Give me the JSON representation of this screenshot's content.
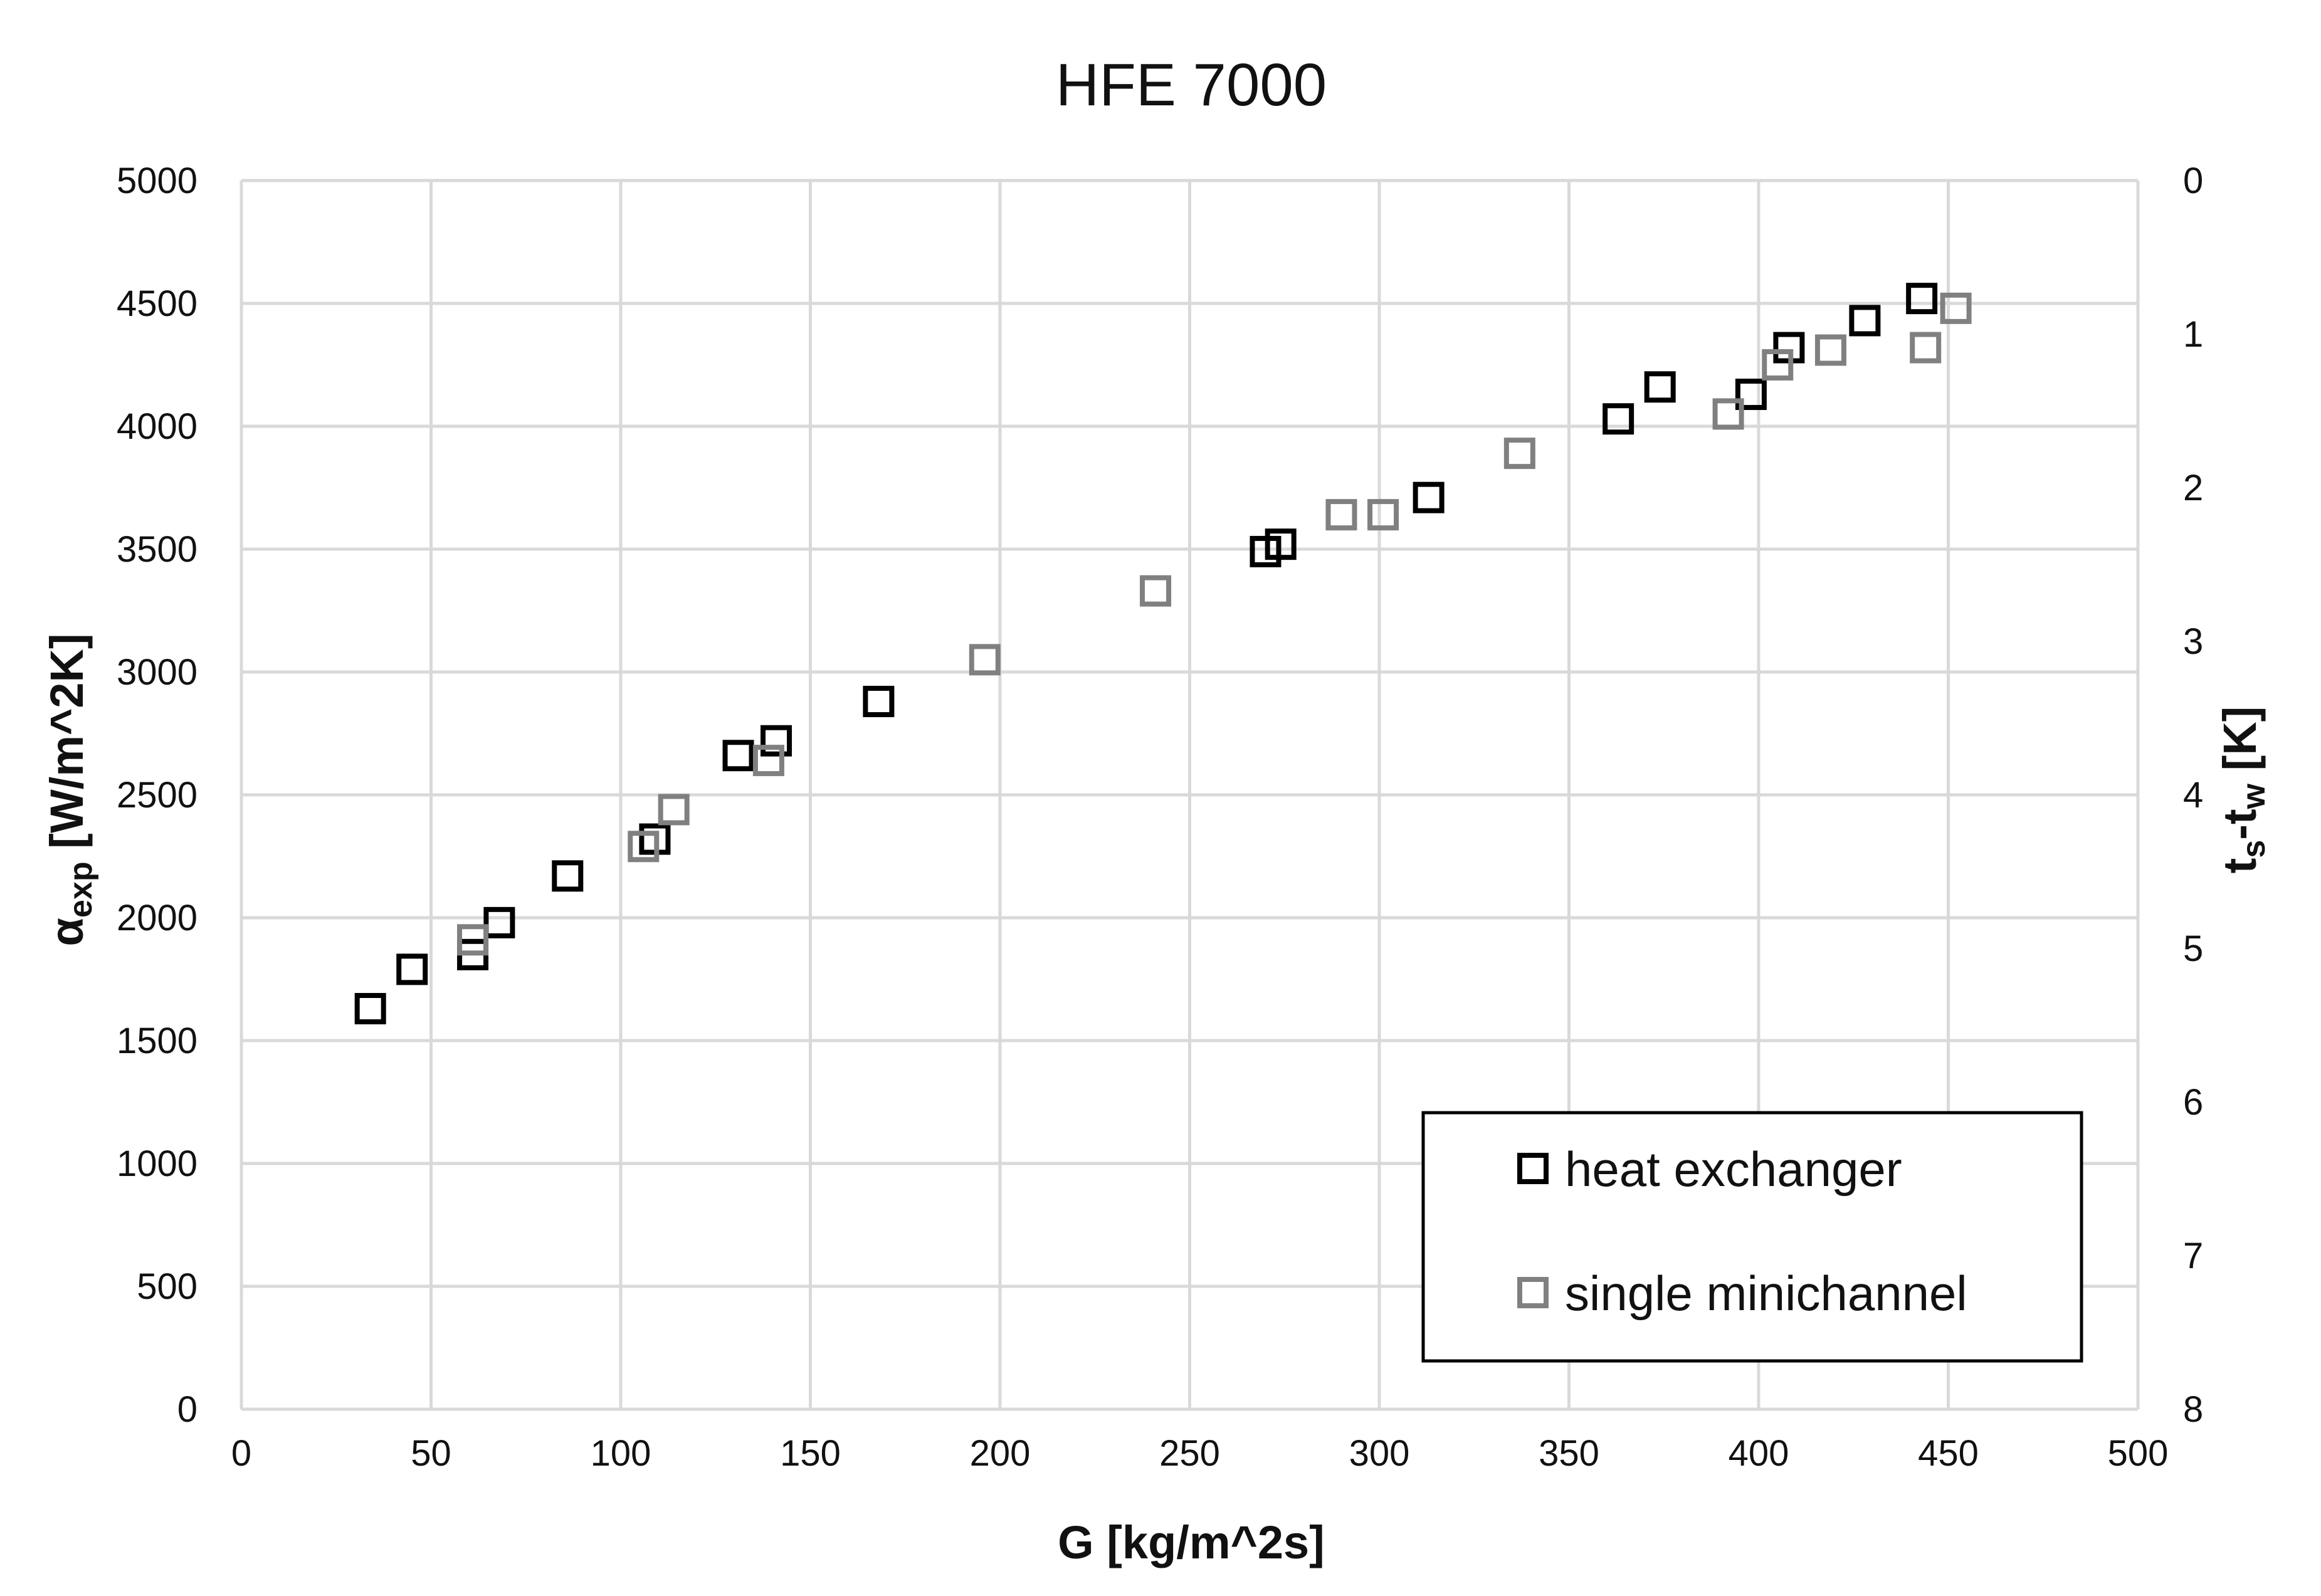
{
  "chart_data": {
    "type": "scatter",
    "title": "HFE 7000",
    "xlabel": "G [kg/m^2s]",
    "ylabel": {
      "main": "α",
      "sub": "exp",
      "rest": " [W/m^2K]"
    },
    "y2label": {
      "parts": [
        {
          "text": "t",
          "sub": false
        },
        {
          "text": "s",
          "sub": true
        },
        {
          "text": "-t",
          "sub": false
        },
        {
          "text": "w",
          "sub": true
        },
        {
          "text": " [K]",
          "sub": false
        }
      ]
    },
    "xlim": [
      0,
      500
    ],
    "ylim": [
      0,
      5000
    ],
    "y2lim": [
      0,
      8
    ],
    "y2_inverted": true,
    "xticks": [
      "0",
      "50",
      "100",
      "150",
      "200",
      "250",
      "300",
      "350",
      "400",
      "450",
      "500"
    ],
    "yticks": [
      "0",
      "500",
      "1000",
      "1500",
      "2000",
      "2500",
      "3000",
      "3500",
      "4000",
      "4500",
      "5000"
    ],
    "y2ticks": [
      "0",
      "1",
      "2",
      "3",
      "4",
      "5",
      "6",
      "7",
      "8"
    ],
    "grid": true,
    "legend_position": "bottom-right",
    "series": [
      {
        "name": "heat exchanger",
        "color": "#000000",
        "marker": "hollow-square",
        "points": [
          [
            34,
            1630
          ],
          [
            45,
            1790
          ],
          [
            61,
            1850
          ],
          [
            68,
            1980
          ],
          [
            86,
            2170
          ],
          [
            109,
            2320
          ],
          [
            131,
            2660
          ],
          [
            141,
            2720
          ],
          [
            168,
            2880
          ],
          [
            270,
            3490
          ],
          [
            274,
            3520
          ],
          [
            313,
            3710
          ],
          [
            363,
            4030
          ],
          [
            374,
            4160
          ],
          [
            398,
            4130
          ],
          [
            408,
            4320
          ],
          [
            428,
            4430
          ],
          [
            443,
            4520
          ]
        ]
      },
      {
        "name": "single minichannel",
        "color": "#808080",
        "marker": "hollow-square",
        "points": [
          [
            61,
            1910
          ],
          [
            106,
            2290
          ],
          [
            114,
            2440
          ],
          [
            139,
            2640
          ],
          [
            196,
            3050
          ],
          [
            241,
            3330
          ],
          [
            290,
            3640
          ],
          [
            301,
            3640
          ],
          [
            337,
            3890
          ],
          [
            392,
            4050
          ],
          [
            405,
            4250
          ],
          [
            419,
            4310
          ],
          [
            444,
            4320
          ],
          [
            452,
            4480
          ]
        ]
      }
    ]
  }
}
